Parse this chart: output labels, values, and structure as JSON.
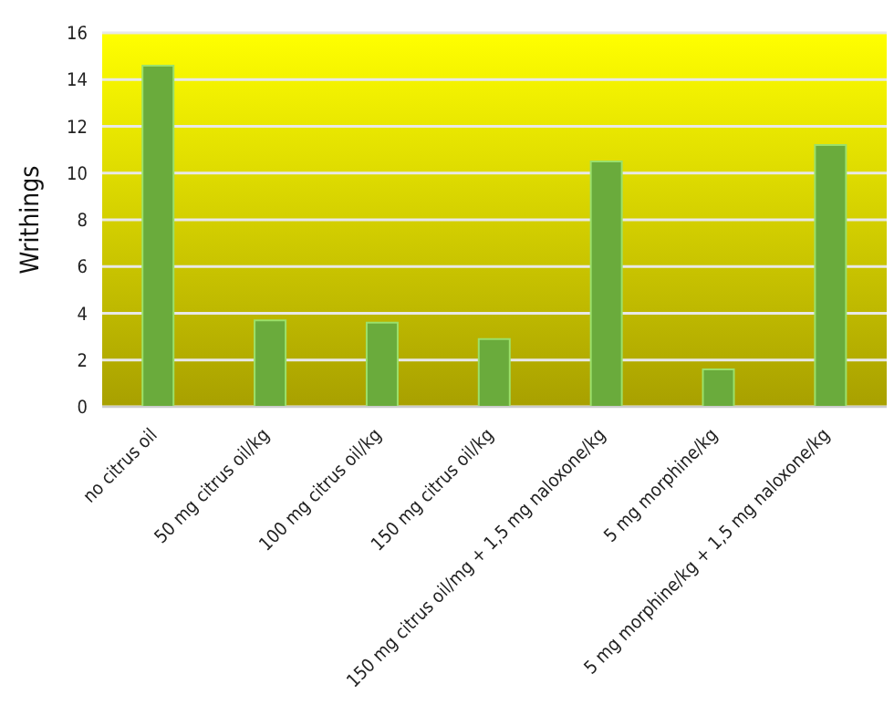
{
  "chart_data": {
    "type": "bar",
    "ylabel": "Writhings",
    "categories": [
      "no citrus oil",
      "50 mg citrus oil/kg",
      "100 mg citrus oil/kg",
      "150 mg citrus oil/kg",
      "150 mg citrus oil/mg + 1,5 mg naloxone/kg",
      "5 mg morphine/kg",
      "5 mg morphine/kg + 1,5 mg naloxone/kg"
    ],
    "values": [
      14.6,
      3.7,
      3.6,
      2.9,
      10.5,
      1.6,
      11.2
    ],
    "color": "#6aab3c",
    "ylim": [
      0,
      16
    ],
    "yticks": [
      0,
      2,
      4,
      6,
      8,
      10,
      12,
      14,
      16
    ],
    "grid": "y"
  }
}
